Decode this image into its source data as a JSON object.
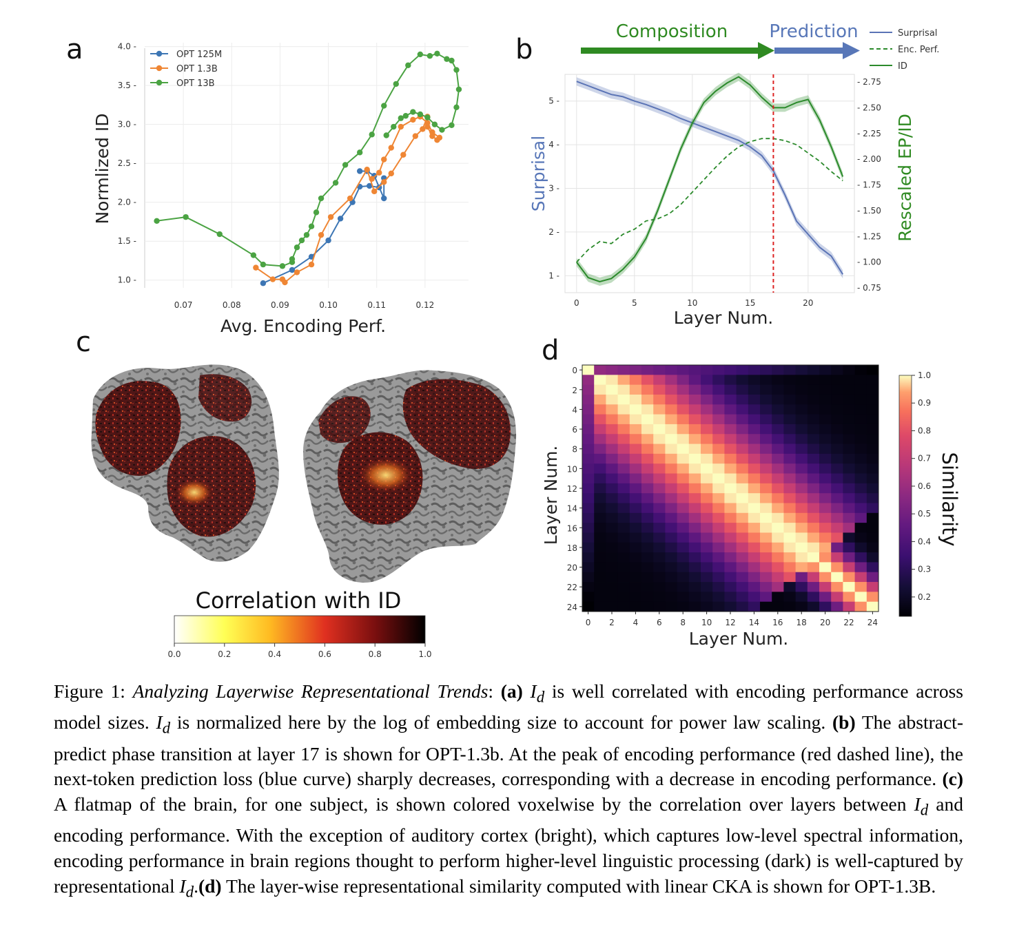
{
  "panels": {
    "a": "a",
    "b": "b",
    "c": "c",
    "d": "d"
  },
  "chart_data": [
    {
      "id": "a",
      "type": "line",
      "xlabel": "Avg. Encoding Perf.",
      "ylabel": "Normlized ID",
      "xlim": [
        0.062,
        0.129
      ],
      "ylim": [
        0.9,
        4.05
      ],
      "xticks": [
        "0.07",
        "0.08",
        "0.09",
        "0.10",
        "0.11",
        "0.12"
      ],
      "yticks": [
        "1.0",
        "1.5",
        "2.0",
        "2.5",
        "3.0",
        "3.5",
        "4.0"
      ],
      "grid": true,
      "legend_position": "top-left",
      "series": [
        {
          "name": "OPT 125M",
          "color": "#3d76b4",
          "points": [
            [
              0.0865,
              0.96
            ],
            [
              0.0925,
              1.13
            ],
            [
              0.0965,
              1.3
            ],
            [
              0.1,
              1.51
            ],
            [
              0.1025,
              1.79
            ],
            [
              0.105,
              2.0
            ],
            [
              0.1065,
              2.2
            ],
            [
              0.1085,
              2.21
            ],
            [
              0.1105,
              2.19
            ],
            [
              0.1115,
              2.31
            ],
            [
              0.1115,
              2.05
            ],
            [
              0.1095,
              2.34
            ],
            [
              0.108,
              2.4
            ],
            [
              0.1065,
              2.4
            ]
          ]
        },
        {
          "name": "OPT 1.3B",
          "color": "#ef8634",
          "points": [
            [
              0.085,
              1.16
            ],
            [
              0.0885,
              1.01
            ],
            [
              0.0905,
              1.01
            ],
            [
              0.091,
              0.97
            ],
            [
              0.0935,
              1.1
            ],
            [
              0.0965,
              1.2
            ],
            [
              0.0985,
              1.58
            ],
            [
              0.1005,
              1.81
            ],
            [
              0.1045,
              2.05
            ],
            [
              0.108,
              2.42
            ],
            [
              0.1095,
              2.14
            ],
            [
              0.1115,
              2.26
            ],
            [
              0.113,
              2.37
            ],
            [
              0.1155,
              2.61
            ],
            [
              0.118,
              2.85
            ],
            [
              0.1195,
              2.94
            ],
            [
              0.1205,
              3.1
            ],
            [
              0.1205,
              2.97
            ],
            [
              0.1215,
              2.85
            ],
            [
              0.1225,
              2.8
            ],
            [
              0.123,
              2.83
            ],
            [
              0.1215,
              2.9
            ],
            [
              0.1205,
              3.02
            ],
            [
              0.119,
              3.1
            ],
            [
              0.1175,
              3.06
            ],
            [
              0.115,
              2.97
            ],
            [
              0.113,
              2.7
            ],
            [
              0.1115,
              2.55
            ],
            [
              0.1105,
              2.38
            ],
            [
              0.109,
              2.3
            ]
          ]
        },
        {
          "name": "OPT 13B",
          "color": "#4ba343",
          "points": [
            [
              0.0645,
              1.76
            ],
            [
              0.0705,
              1.81
            ],
            [
              0.0775,
              1.59
            ],
            [
              0.0845,
              1.32
            ],
            [
              0.0865,
              1.2
            ],
            [
              0.0905,
              1.18
            ],
            [
              0.0925,
              1.23
            ],
            [
              0.0925,
              1.27
            ],
            [
              0.0935,
              1.42
            ],
            [
              0.0945,
              1.51
            ],
            [
              0.0955,
              1.58
            ],
            [
              0.0965,
              1.69
            ],
            [
              0.0975,
              1.87
            ],
            [
              0.0985,
              2.05
            ],
            [
              0.1015,
              2.25
            ],
            [
              0.1035,
              2.48
            ],
            [
              0.1065,
              2.64
            ],
            [
              0.109,
              2.87
            ],
            [
              0.1115,
              3.24
            ],
            [
              0.114,
              3.52
            ],
            [
              0.1165,
              3.76
            ],
            [
              0.119,
              3.9
            ],
            [
              0.121,
              3.88
            ],
            [
              0.1225,
              3.91
            ],
            [
              0.1245,
              3.84
            ],
            [
              0.1255,
              3.82
            ],
            [
              0.1265,
              3.7
            ],
            [
              0.127,
              3.45
            ],
            [
              0.1265,
              3.22
            ],
            [
              0.1255,
              2.99
            ],
            [
              0.1235,
              2.93
            ],
            [
              0.122,
              3.0
            ],
            [
              0.1205,
              3.09
            ],
            [
              0.119,
              3.13
            ],
            [
              0.1175,
              3.16
            ],
            [
              0.116,
              3.11
            ],
            [
              0.115,
              3.08
            ],
            [
              0.1135,
              2.97
            ],
            [
              0.112,
              2.86
            ]
          ]
        }
      ]
    },
    {
      "id": "b",
      "type": "line",
      "xlabel": "Layer Num.",
      "ylabel_left": "Surprisal",
      "ylabel_right": "Rescaled EP/ID",
      "xlim": [
        -1,
        24
      ],
      "ylim_left": [
        0.8,
        5.8
      ],
      "ylim_right": [
        0.75,
        2.75
      ],
      "xticks": [
        "0",
        "5",
        "10",
        "15",
        "20"
      ],
      "yticks_left": [
        "1",
        "2",
        "3",
        "4",
        "5"
      ],
      "yticks_right": [
        "0.75",
        "1.00",
        "1.25",
        "1.50",
        "1.75",
        "2.00",
        "2.25",
        "2.50",
        "2.75"
      ],
      "vline_x": 17,
      "phase_labels": [
        "Composition",
        "Prediction"
      ],
      "legend_position": "top-right",
      "series": [
        {
          "name": "Surprisal",
          "axis": "left",
          "style": "solid",
          "color": "#5a73b5",
          "x": [
            0,
            1,
            2,
            3,
            4,
            5,
            6,
            7,
            8,
            9,
            10,
            11,
            12,
            13,
            14,
            15,
            16,
            17,
            18,
            19,
            20,
            21,
            22,
            23
          ],
          "y": [
            5.45,
            5.35,
            5.25,
            5.15,
            5.1,
            5.0,
            4.92,
            4.82,
            4.72,
            4.6,
            4.5,
            4.4,
            4.3,
            4.2,
            4.1,
            3.95,
            3.75,
            3.4,
            2.85,
            2.25,
            1.95,
            1.65,
            1.45,
            1.03
          ]
        },
        {
          "name": "Enc. Perf.",
          "axis": "right",
          "style": "dashed",
          "color": "#2b8a2b",
          "x": [
            0,
            1,
            2,
            3,
            4,
            5,
            6,
            7,
            8,
            9,
            10,
            11,
            12,
            13,
            14,
            15,
            16,
            17,
            18,
            19,
            20,
            21,
            22,
            23
          ],
          "y": [
            1.0,
            1.12,
            1.2,
            1.18,
            1.27,
            1.32,
            1.4,
            1.42,
            1.47,
            1.56,
            1.68,
            1.8,
            1.92,
            2.03,
            2.12,
            2.17,
            2.2,
            2.2,
            2.18,
            2.14,
            2.06,
            1.98,
            1.88,
            1.79
          ]
        },
        {
          "name": "ID",
          "axis": "right",
          "style": "solid",
          "color": "#2b8a2b",
          "x": [
            0,
            1,
            2,
            3,
            4,
            5,
            6,
            7,
            8,
            9,
            10,
            11,
            12,
            13,
            14,
            15,
            16,
            17,
            18,
            19,
            20,
            21,
            22,
            23
          ],
          "y": [
            1.0,
            0.85,
            0.81,
            0.84,
            0.93,
            1.05,
            1.23,
            1.5,
            1.8,
            2.1,
            2.35,
            2.55,
            2.66,
            2.74,
            2.8,
            2.72,
            2.6,
            2.5,
            2.5,
            2.55,
            2.58,
            2.38,
            2.12,
            1.83
          ]
        }
      ]
    },
    {
      "id": "c",
      "type": "heatmap",
      "title": "Correlation with ID",
      "colorbar_ticks": [
        "0.0",
        "0.2",
        "0.4",
        "0.6",
        "0.8",
        "1.0"
      ],
      "colormap": "afmhot_r"
    },
    {
      "id": "d",
      "type": "heatmap",
      "xlabel": "Layer Num.",
      "ylabel": "Layer Num.",
      "colorbar_label": "Similarity",
      "n_layers": 25,
      "ticks": [
        "0",
        "2",
        "4",
        "6",
        "8",
        "10",
        "12",
        "14",
        "16",
        "18",
        "20",
        "22",
        "24"
      ],
      "colorbar_ticks": [
        "1.0",
        "0.9",
        "0.8",
        "0.7",
        "0.6",
        "0.5",
        "0.4",
        "0.3",
        "0.2"
      ],
      "colormap": "magma",
      "vmin": 0.13,
      "vmax": 1.0
    }
  ],
  "caption": {
    "s1": "Figure 1: ",
    "s2": "Analyzing Layerwise Representational Trends",
    "s3": ": ",
    "s4": "(a)",
    "s5": " I",
    "s6": "d",
    "s7": " is well correlated with encoding performance across model sizes. ",
    "s8": "I",
    "s9": "d",
    "s10": " is normalized here by the log of embedding size to account for power law scaling. ",
    "s11": "(b)",
    "s12": " The abstract-predict phase transition at layer 17 is shown for OPT-1.3b. At the peak of encoding performance (red dashed line), the next-token prediction loss (blue curve) sharply decreases, corresponding with a decrease in encoding performance. ",
    "s13": "(c)",
    "s14": " A flatmap of the brain, for one subject, is shown colored voxelwise by the correlation over layers between ",
    "s15": "I",
    "s16": "d",
    "s17": " and encoding performance. With the exception of auditory cortex (bright), which captures low-level spectral information, encoding performance in brain regions thought to perform higher-level linguistic processing (dark) is well-captured by representational ",
    "s18": "I",
    "s19": "d",
    "s20": ".",
    "s21": "(d)",
    "s22": " The layer-wise representational similarity computed with linear CKA is shown for OPT-1.3B."
  }
}
